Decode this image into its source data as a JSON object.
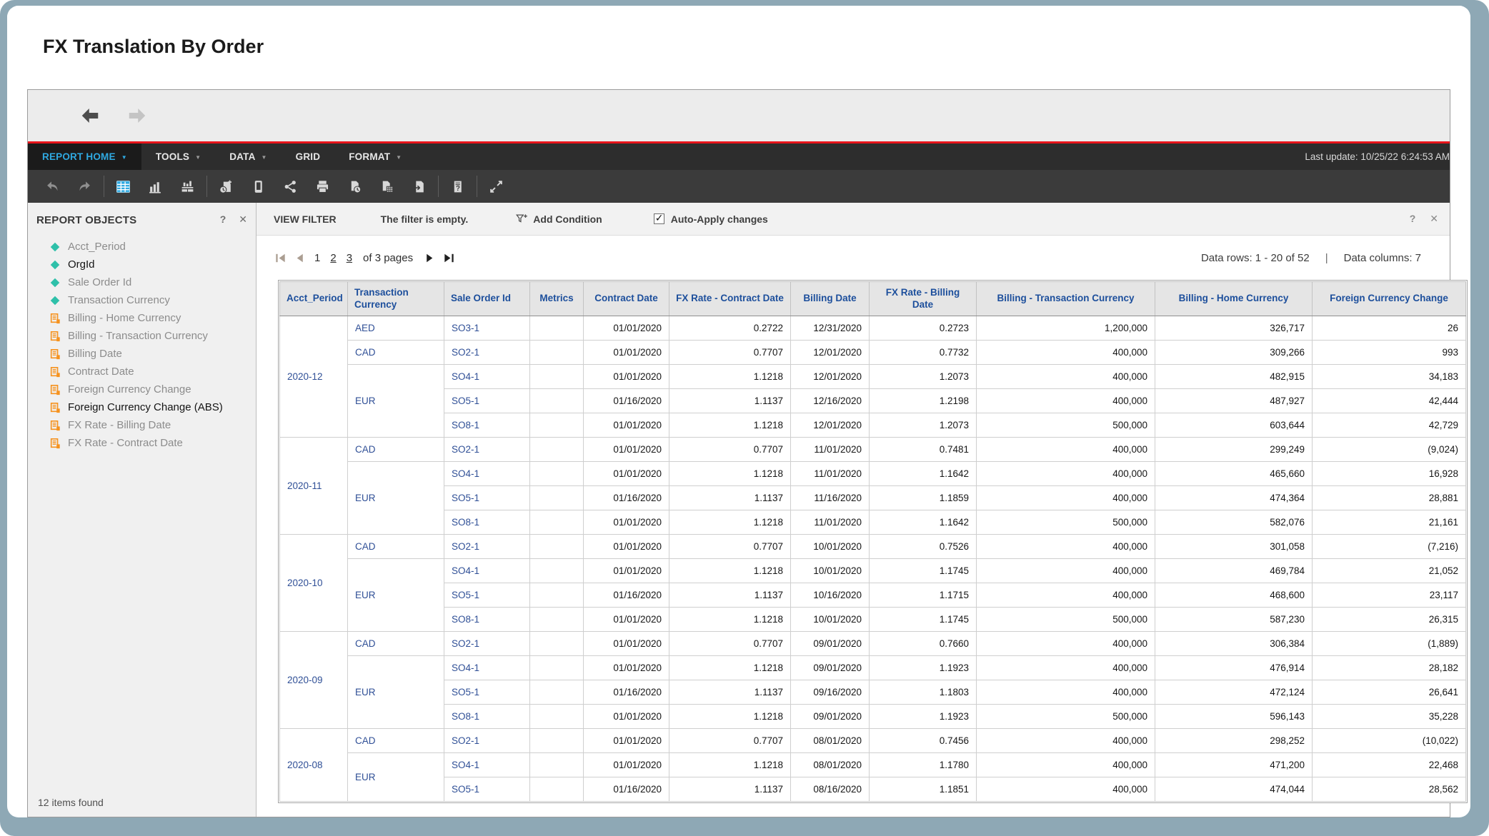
{
  "window": {
    "title": "FX Translation By Order"
  },
  "colors": {
    "accent_blue": "#2FA9E1",
    "alert_red": "#E8151B",
    "attribute_teal": "#2EC0A9",
    "metric_orange": "#F6921E",
    "header_blue": "#1D4F9C",
    "row_header_navy": "#2F4F96"
  },
  "nav": {
    "buttons": [
      "back",
      "forward"
    ],
    "disabled": [
      "forward"
    ]
  },
  "menu": {
    "items": [
      {
        "label": "REPORT HOME",
        "caret": true,
        "active": true
      },
      {
        "label": "TOOLS",
        "caret": true,
        "active": false
      },
      {
        "label": "DATA",
        "caret": true,
        "active": false
      },
      {
        "label": "GRID",
        "caret": false,
        "active": false
      },
      {
        "label": "FORMAT",
        "caret": true,
        "active": false
      }
    ],
    "last_update": "Last update: 10/25/22 6:24:53 AM"
  },
  "toolbar": {
    "buttons": [
      "undo",
      "redo",
      "|",
      "grid-view",
      "graph-view",
      "grid-graph-view",
      "|",
      "add-to-history",
      "personal-view",
      "share",
      "print",
      "schedule-delivery",
      "export-excel",
      "export-pdf",
      "|",
      "report-details",
      "|",
      "fullscreen"
    ],
    "active": "grid-view",
    "disabled": [
      "undo",
      "redo"
    ]
  },
  "sidebar": {
    "title": "REPORT OBJECTS",
    "header_icons": [
      "help",
      "close"
    ],
    "items": [
      {
        "label": "Acct_Period",
        "type": "attribute",
        "bold": false
      },
      {
        "label": "OrgId",
        "type": "attribute",
        "bold": true
      },
      {
        "label": "Sale Order Id",
        "type": "attribute",
        "bold": false
      },
      {
        "label": "Transaction Currency",
        "type": "attribute",
        "bold": false
      },
      {
        "label": "Billing - Home Currency",
        "type": "metric",
        "bold": false
      },
      {
        "label": "Billing - Transaction Currency",
        "type": "metric",
        "bold": false
      },
      {
        "label": "Billing Date",
        "type": "metric",
        "bold": false
      },
      {
        "label": "Contract Date",
        "type": "metric",
        "bold": false
      },
      {
        "label": "Foreign Currency Change",
        "type": "metric",
        "bold": false
      },
      {
        "label": "Foreign Currency Change (ABS)",
        "type": "metric",
        "bold": true
      },
      {
        "label": "FX Rate - Billing Date",
        "type": "metric",
        "bold": false
      },
      {
        "label": "FX Rate - Contract Date",
        "type": "metric",
        "bold": false
      }
    ],
    "footer": "12 items found"
  },
  "view_filter": {
    "title": "VIEW FILTER",
    "status": "The filter is empty.",
    "add_condition_label": "Add Condition",
    "auto_apply_label": "Auto-Apply changes",
    "auto_apply_checked": true,
    "header_icons": [
      "help",
      "close"
    ]
  },
  "pager": {
    "nav_buttons": [
      "first-page",
      "prev-page",
      "next-page",
      "last-page"
    ],
    "disabled": [
      "first-page",
      "prev-page"
    ],
    "pages": [
      {
        "label": "1",
        "current": true
      },
      {
        "label": "2",
        "current": false
      },
      {
        "label": "3",
        "current": false
      }
    ],
    "pages_suffix": "of 3 pages",
    "rows_info": "Data rows: 1 - 20 of 52",
    "divider": "|",
    "columns_info": "Data columns: 7"
  },
  "table": {
    "columns": [
      "Acct_Period",
      "Transaction Currency",
      "Sale Order Id",
      "Metrics",
      "Contract Date",
      "FX Rate - Contract Date",
      "Billing Date",
      "FX Rate - Billing Date",
      "Billing - Transaction Currency",
      "Billing - Home Currency",
      "Foreign Currency Change"
    ],
    "groups": [
      {
        "period": "2020-12",
        "blocks": [
          {
            "currency": "AED",
            "rows": [
              [
                "SO3-1",
                "01/01/2020",
                "0.2722",
                "12/31/2020",
                "0.2723",
                "1,200,000",
                "326,717",
                "26"
              ]
            ]
          },
          {
            "currency": "CAD",
            "rows": [
              [
                "SO2-1",
                "01/01/2020",
                "0.7707",
                "12/01/2020",
                "0.7732",
                "400,000",
                "309,266",
                "993"
              ]
            ]
          },
          {
            "currency": "EUR",
            "rows": [
              [
                "SO4-1",
                "01/01/2020",
                "1.1218",
                "12/01/2020",
                "1.2073",
                "400,000",
                "482,915",
                "34,183"
              ],
              [
                "SO5-1",
                "01/16/2020",
                "1.1137",
                "12/16/2020",
                "1.2198",
                "400,000",
                "487,927",
                "42,444"
              ],
              [
                "SO8-1",
                "01/01/2020",
                "1.1218",
                "12/01/2020",
                "1.2073",
                "500,000",
                "603,644",
                "42,729"
              ]
            ]
          }
        ]
      },
      {
        "period": "2020-11",
        "blocks": [
          {
            "currency": "CAD",
            "rows": [
              [
                "SO2-1",
                "01/01/2020",
                "0.7707",
                "11/01/2020",
                "0.7481",
                "400,000",
                "299,249",
                "(9,024)"
              ]
            ]
          },
          {
            "currency": "EUR",
            "rows": [
              [
                "SO4-1",
                "01/01/2020",
                "1.1218",
                "11/01/2020",
                "1.1642",
                "400,000",
                "465,660",
                "16,928"
              ],
              [
                "SO5-1",
                "01/16/2020",
                "1.1137",
                "11/16/2020",
                "1.1859",
                "400,000",
                "474,364",
                "28,881"
              ],
              [
                "SO8-1",
                "01/01/2020",
                "1.1218",
                "11/01/2020",
                "1.1642",
                "500,000",
                "582,076",
                "21,161"
              ]
            ]
          }
        ]
      },
      {
        "period": "2020-10",
        "blocks": [
          {
            "currency": "CAD",
            "rows": [
              [
                "SO2-1",
                "01/01/2020",
                "0.7707",
                "10/01/2020",
                "0.7526",
                "400,000",
                "301,058",
                "(7,216)"
              ]
            ]
          },
          {
            "currency": "EUR",
            "rows": [
              [
                "SO4-1",
                "01/01/2020",
                "1.1218",
                "10/01/2020",
                "1.1745",
                "400,000",
                "469,784",
                "21,052"
              ],
              [
                "SO5-1",
                "01/16/2020",
                "1.1137",
                "10/16/2020",
                "1.1715",
                "400,000",
                "468,600",
                "23,117"
              ],
              [
                "SO8-1",
                "01/01/2020",
                "1.1218",
                "10/01/2020",
                "1.1745",
                "500,000",
                "587,230",
                "26,315"
              ]
            ]
          }
        ]
      },
      {
        "period": "2020-09",
        "blocks": [
          {
            "currency": "CAD",
            "rows": [
              [
                "SO2-1",
                "01/01/2020",
                "0.7707",
                "09/01/2020",
                "0.7660",
                "400,000",
                "306,384",
                "(1,889)"
              ]
            ]
          },
          {
            "currency": "EUR",
            "rows": [
              [
                "SO4-1",
                "01/01/2020",
                "1.1218",
                "09/01/2020",
                "1.1923",
                "400,000",
                "476,914",
                "28,182"
              ],
              [
                "SO5-1",
                "01/16/2020",
                "1.1137",
                "09/16/2020",
                "1.1803",
                "400,000",
                "472,124",
                "26,641"
              ],
              [
                "SO8-1",
                "01/01/2020",
                "1.1218",
                "09/01/2020",
                "1.1923",
                "500,000",
                "596,143",
                "35,228"
              ]
            ]
          }
        ]
      },
      {
        "period": "2020-08",
        "blocks": [
          {
            "currency": "CAD",
            "rows": [
              [
                "SO2-1",
                "01/01/2020",
                "0.7707",
                "08/01/2020",
                "0.7456",
                "400,000",
                "298,252",
                "(10,022)"
              ]
            ]
          },
          {
            "currency": "EUR",
            "rows": [
              [
                "SO4-1",
                "01/01/2020",
                "1.1218",
                "08/01/2020",
                "1.1780",
                "400,000",
                "471,200",
                "22,468"
              ],
              [
                "SO5-1",
                "01/16/2020",
                "1.1137",
                "08/16/2020",
                "1.1851",
                "400,000",
                "474,044",
                "28,562"
              ]
            ]
          }
        ]
      }
    ]
  }
}
